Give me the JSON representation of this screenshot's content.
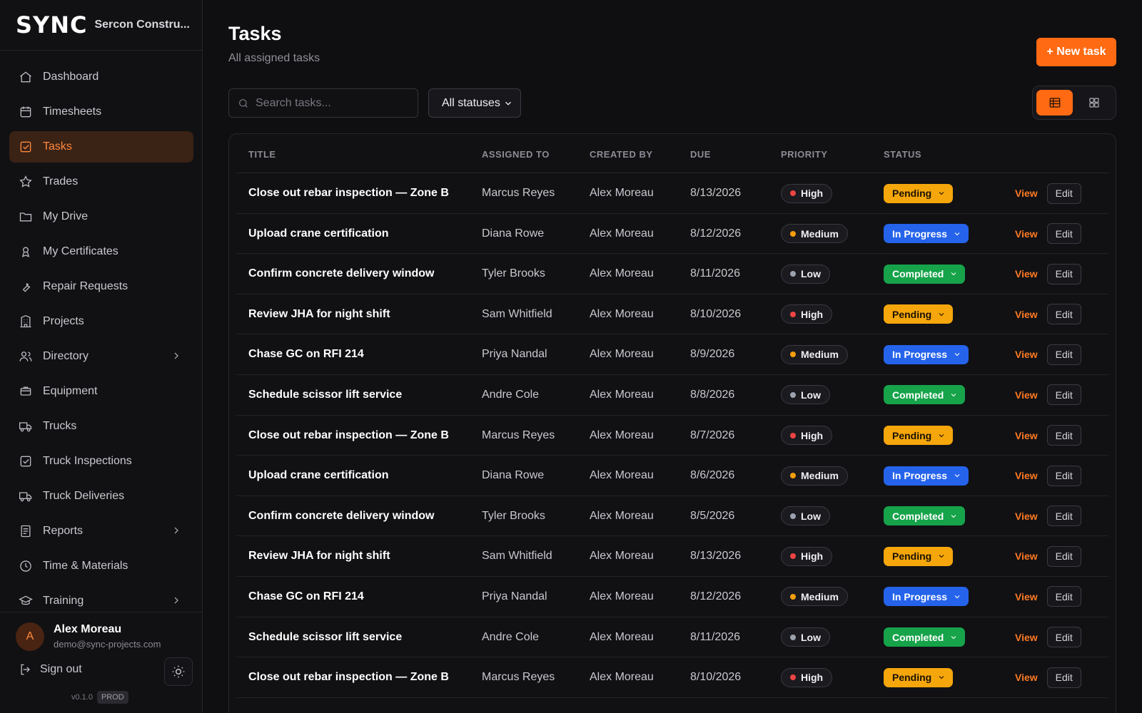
{
  "brand": {
    "logo": "SYNC",
    "org": "Sercon Constru..."
  },
  "sidebar": {
    "items": [
      {
        "label": "Dashboard",
        "icon": "home-icon"
      },
      {
        "label": "Timesheets",
        "icon": "calendar-icon"
      },
      {
        "label": "Tasks",
        "icon": "checkbox-icon",
        "active": true
      },
      {
        "label": "Trades",
        "icon": "star-icon"
      },
      {
        "label": "My Drive",
        "icon": "folder-icon"
      },
      {
        "label": "My Certificates",
        "icon": "certificate-icon"
      },
      {
        "label": "Repair Requests",
        "icon": "wrench-icon"
      },
      {
        "label": "Projects",
        "icon": "building-icon"
      },
      {
        "label": "Directory",
        "icon": "users-icon",
        "expandable": true
      },
      {
        "label": "Equipment",
        "icon": "equipment-icon"
      },
      {
        "label": "Trucks",
        "icon": "truck-icon"
      },
      {
        "label": "Truck Inspections",
        "icon": "checkbox-icon"
      },
      {
        "label": "Truck Deliveries",
        "icon": "truck-icon"
      },
      {
        "label": "Reports",
        "icon": "document-icon",
        "expandable": true
      },
      {
        "label": "Time & Materials",
        "icon": "clock-icon"
      },
      {
        "label": "Training",
        "icon": "graduation-cap-icon",
        "expandable": true
      }
    ]
  },
  "user": {
    "initial": "A",
    "name": "Alex Moreau",
    "email": "demo@sync-projects.com",
    "sign_out": "Sign out",
    "version": "v0.1.0",
    "env": "PROD"
  },
  "header": {
    "title": "Tasks",
    "subtitle": "All assigned tasks",
    "new_task": "+ New task"
  },
  "filters": {
    "search_placeholder": "Search tasks...",
    "status_value": "All statuses"
  },
  "table": {
    "columns": [
      "TITLE",
      "ASSIGNED TO",
      "CREATED BY",
      "DUE",
      "PRIORITY",
      "STATUS"
    ],
    "view_label": "View",
    "edit_label": "Edit",
    "rows": [
      {
        "title": "Close out rebar inspection — Zone B",
        "assigned": "Marcus Reyes",
        "created": "Alex Moreau",
        "due": "8/13/2026",
        "priority": "High",
        "status": "Pending"
      },
      {
        "title": "Upload crane certification",
        "assigned": "Diana Rowe",
        "created": "Alex Moreau",
        "due": "8/12/2026",
        "priority": "Medium",
        "status": "In Progress"
      },
      {
        "title": "Confirm concrete delivery window",
        "assigned": "Tyler Brooks",
        "created": "Alex Moreau",
        "due": "8/11/2026",
        "priority": "Low",
        "status": "Completed"
      },
      {
        "title": "Review JHA for night shift",
        "assigned": "Sam Whitfield",
        "created": "Alex Moreau",
        "due": "8/10/2026",
        "priority": "High",
        "status": "Pending"
      },
      {
        "title": "Chase GC on RFI 214",
        "assigned": "Priya Nandal",
        "created": "Alex Moreau",
        "due": "8/9/2026",
        "priority": "Medium",
        "status": "In Progress"
      },
      {
        "title": "Schedule scissor lift service",
        "assigned": "Andre Cole",
        "created": "Alex Moreau",
        "due": "8/8/2026",
        "priority": "Low",
        "status": "Completed"
      },
      {
        "title": "Close out rebar inspection — Zone B",
        "assigned": "Marcus Reyes",
        "created": "Alex Moreau",
        "due": "8/7/2026",
        "priority": "High",
        "status": "Pending"
      },
      {
        "title": "Upload crane certification",
        "assigned": "Diana Rowe",
        "created": "Alex Moreau",
        "due": "8/6/2026",
        "priority": "Medium",
        "status": "In Progress"
      },
      {
        "title": "Confirm concrete delivery window",
        "assigned": "Tyler Brooks",
        "created": "Alex Moreau",
        "due": "8/5/2026",
        "priority": "Low",
        "status": "Completed"
      },
      {
        "title": "Review JHA for night shift",
        "assigned": "Sam Whitfield",
        "created": "Alex Moreau",
        "due": "8/13/2026",
        "priority": "High",
        "status": "Pending"
      },
      {
        "title": "Chase GC on RFI 214",
        "assigned": "Priya Nandal",
        "created": "Alex Moreau",
        "due": "8/12/2026",
        "priority": "Medium",
        "status": "In Progress"
      },
      {
        "title": "Schedule scissor lift service",
        "assigned": "Andre Cole",
        "created": "Alex Moreau",
        "due": "8/11/2026",
        "priority": "Low",
        "status": "Completed"
      },
      {
        "title": "Close out rebar inspection — Zone B",
        "assigned": "Marcus Reyes",
        "created": "Alex Moreau",
        "due": "8/10/2026",
        "priority": "High",
        "status": "Pending"
      }
    ]
  },
  "colors": {
    "accent": "#ff6a13",
    "priority_high": "#ef4444",
    "priority_medium": "#f59e0b",
    "priority_low": "#9ca3af",
    "status_pending": "#f5a60b",
    "status_in_progress": "#2563eb",
    "status_completed": "#16a34a"
  }
}
